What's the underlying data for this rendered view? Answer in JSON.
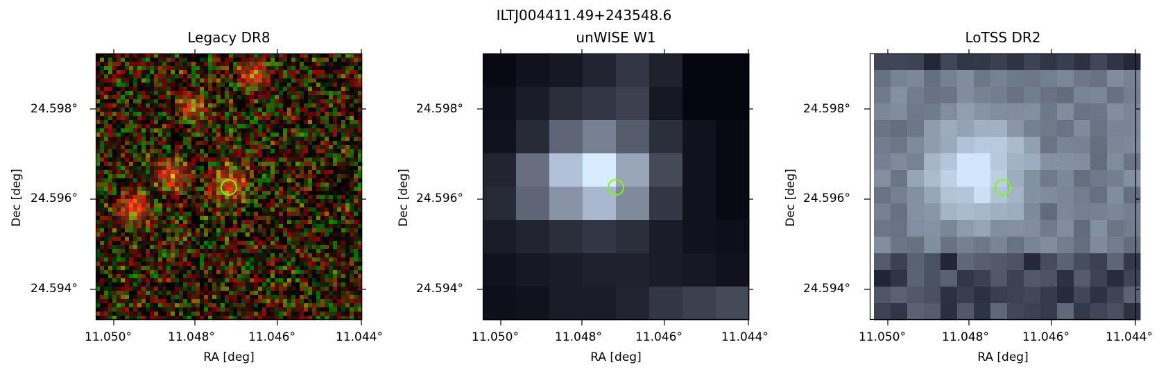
{
  "figure": {
    "suptitle": "ILTJ004411.49+243548.6",
    "panels": [
      {
        "title": "Legacy DR8",
        "style": "optical-rgb"
      },
      {
        "title": "unWISE W1",
        "style": "grey-blocks"
      },
      {
        "title": "LoTSS DR2",
        "style": "bone-blocks"
      }
    ],
    "xlabel": "RA [deg]",
    "ylabel": "Dec [deg]",
    "xticks": [
      "11.050°",
      "11.048°",
      "11.046°",
      "11.044°"
    ],
    "yticks": [
      "24.598°",
      "24.596°",
      "24.594°"
    ],
    "marker_color": "#7cfc00",
    "marker_shape": "circle"
  }
}
